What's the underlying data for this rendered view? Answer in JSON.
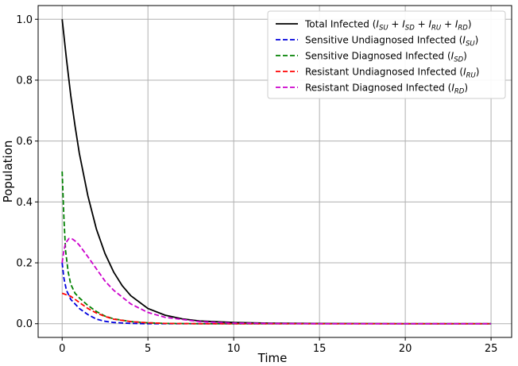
{
  "chart_data": {
    "type": "line",
    "title": "",
    "xlabel": "Time",
    "ylabel": "Population",
    "xlim": [
      -1.4,
      26.2
    ],
    "ylim": [
      -0.045,
      1.045
    ],
    "xticks": [
      0,
      5,
      10,
      15,
      20,
      25
    ],
    "yticks": [
      0.0,
      0.2,
      0.4,
      0.6,
      0.8,
      1.0
    ],
    "xtick_labels": [
      "0",
      "5",
      "10",
      "15",
      "20",
      "25"
    ],
    "ytick_labels": [
      "0.0",
      "0.2",
      "0.4",
      "0.6",
      "0.8",
      "1.0"
    ],
    "grid": true,
    "legend_position": "top-right",
    "series": [
      {
        "name": "Total Infected (I_SU + I_SD + I_RU + I_RD)",
        "color": "#000000",
        "dash": "solid",
        "x": [
          0,
          0.25,
          0.5,
          0.75,
          1,
          1.5,
          2,
          2.5,
          3,
          3.5,
          4,
          5,
          6,
          7,
          8,
          10,
          12,
          15,
          20,
          25
        ],
        "y": [
          1.0,
          0.87,
          0.75,
          0.65,
          0.56,
          0.42,
          0.31,
          0.23,
          0.17,
          0.125,
          0.092,
          0.05,
          0.028,
          0.016,
          0.009,
          0.004,
          0.002,
          0.001,
          0.0,
          0.0
        ]
      },
      {
        "name": "Sensitive Undiagnosed Infected (I_SU)",
        "color": "#0000dd",
        "dash": "dashed",
        "x": [
          0,
          0.1,
          0.25,
          0.5,
          1,
          1.5,
          2,
          2.5,
          3,
          4,
          5,
          25
        ],
        "y": [
          0.2,
          0.15,
          0.11,
          0.08,
          0.05,
          0.03,
          0.015,
          0.008,
          0.004,
          0.001,
          0.0,
          0.0
        ]
      },
      {
        "name": "Sensitive Diagnosed Infected (I_SD)",
        "color": "#008000",
        "dash": "dashed",
        "x": [
          0,
          0.1,
          0.2,
          0.35,
          0.5,
          0.75,
          1,
          1.5,
          2,
          2.5,
          3,
          4,
          5,
          6,
          8,
          25
        ],
        "y": [
          0.5,
          0.35,
          0.24,
          0.17,
          0.13,
          0.1,
          0.085,
          0.06,
          0.04,
          0.025,
          0.016,
          0.007,
          0.003,
          0.001,
          0.0,
          0.0
        ]
      },
      {
        "name": "Resistant Undiagnosed Infected (I_RU)",
        "color": "#ff0000",
        "dash": "dashed",
        "x": [
          0,
          0.25,
          0.5,
          0.75,
          1,
          1.5,
          2,
          2.5,
          3,
          4,
          5,
          6,
          8,
          25
        ],
        "y": [
          0.1,
          0.095,
          0.09,
          0.08,
          0.07,
          0.05,
          0.035,
          0.024,
          0.015,
          0.007,
          0.003,
          0.001,
          0.0,
          0.0
        ]
      },
      {
        "name": "Resistant Diagnosed Infected (I_RD)",
        "color": "#cc00cc",
        "dash": "dashed",
        "x": [
          0,
          0.1,
          0.2,
          0.4,
          0.6,
          0.8,
          1,
          1.5,
          2,
          2.5,
          3,
          4,
          5,
          6,
          8,
          10,
          12,
          15,
          25
        ],
        "y": [
          0.2,
          0.24,
          0.265,
          0.28,
          0.278,
          0.27,
          0.258,
          0.22,
          0.18,
          0.14,
          0.11,
          0.065,
          0.037,
          0.021,
          0.007,
          0.002,
          0.001,
          0.0,
          0.0
        ]
      }
    ],
    "legend": [
      {
        "base": "Total Infected (",
        "sub": [
          [
            "I",
            "SU",
            " + "
          ],
          [
            "I",
            "SD",
            " + "
          ],
          [
            "I",
            "RU",
            " + "
          ],
          [
            "I",
            "RD",
            ")"
          ]
        ]
      },
      {
        "base": "Sensitive Undiagnosed Infected (",
        "sub": [
          [
            "I",
            "SU",
            ")"
          ]
        ]
      },
      {
        "base": "Sensitive Diagnosed Infected (",
        "sub": [
          [
            "I",
            "SD",
            ")"
          ]
        ]
      },
      {
        "base": "Resistant Undiagnosed Infected (",
        "sub": [
          [
            "I",
            "RU",
            ")"
          ]
        ]
      },
      {
        "base": "Resistant Diagnosed Infected (",
        "sub": [
          [
            "I",
            "RD",
            ")"
          ]
        ]
      }
    ]
  }
}
